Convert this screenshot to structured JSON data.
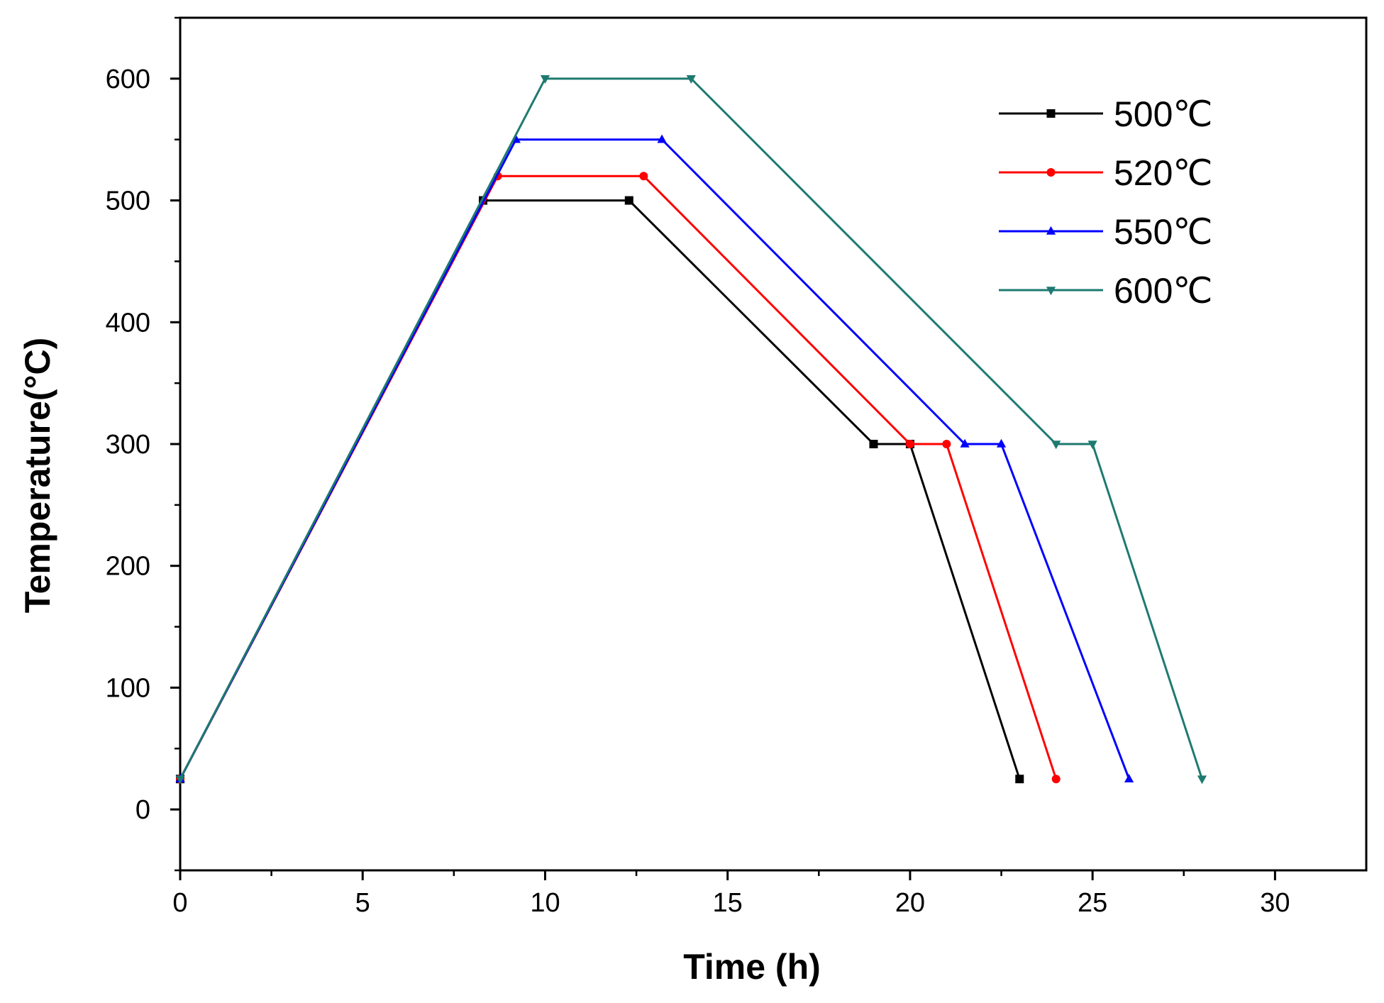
{
  "chart_data": {
    "type": "line",
    "title": "",
    "xlabel": "Time (h)",
    "ylabel": "Temperature(°C)",
    "xlim": [
      0,
      32.5
    ],
    "ylim": [
      -50,
      650
    ],
    "xticks": [
      0,
      5,
      10,
      15,
      20,
      25,
      30
    ],
    "yticks": [
      0,
      100,
      200,
      300,
      400,
      500,
      600
    ],
    "grid": false,
    "legend_position": "top-right",
    "series": [
      {
        "name": "500℃",
        "color": "#000000",
        "marker": "square",
        "x": [
          0,
          8.3,
          12.3,
          19,
          20,
          23
        ],
        "y": [
          25,
          500,
          500,
          300,
          300,
          25
        ]
      },
      {
        "name": "520℃",
        "color": "#ff0000",
        "marker": "circle",
        "x": [
          0,
          8.7,
          12.7,
          20,
          21,
          24
        ],
        "y": [
          25,
          520,
          520,
          300,
          300,
          25
        ]
      },
      {
        "name": "550℃",
        "color": "#0000ff",
        "marker": "triangle-up",
        "x": [
          0,
          9.2,
          13.2,
          21.5,
          22.5,
          26
        ],
        "y": [
          25,
          550,
          550,
          300,
          300,
          25
        ]
      },
      {
        "name": "600℃",
        "color": "#1e7a70",
        "marker": "triangle-down",
        "x": [
          0,
          10,
          14,
          24,
          25,
          28
        ],
        "y": [
          25,
          600,
          600,
          300,
          300,
          25
        ]
      }
    ]
  }
}
